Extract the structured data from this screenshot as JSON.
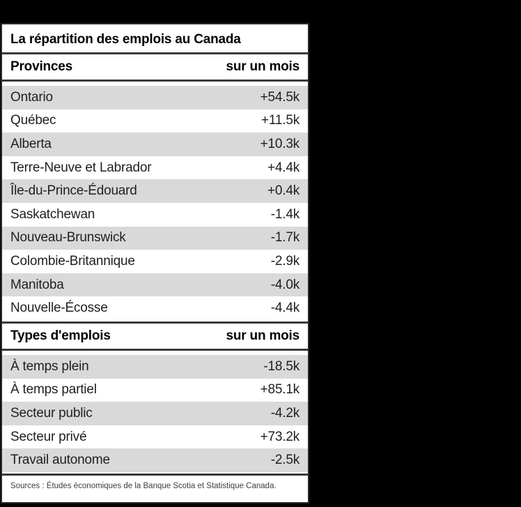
{
  "page": {
    "background_color": "#000000"
  },
  "card": {
    "background_color": "#ffffff",
    "border_color": "#2b2b2b",
    "stripe_color": "#d9d9d9",
    "rule_color": "#3a3a3a",
    "title": "La répartition des emplois au Canada",
    "sources": "Sources : Études économiques de la Banque Scotia et Statistique Canada."
  },
  "sections": [
    {
      "header": {
        "label": "Provinces",
        "value_label": "sur un mois"
      },
      "rows": [
        {
          "label": "Ontario",
          "value": "+54.5k"
        },
        {
          "label": "Québec",
          "value": "+11.5k"
        },
        {
          "label": "Alberta",
          "value": "+10.3k"
        },
        {
          "label": "Terre-Neuve et Labrador",
          "value": "+4.4k"
        },
        {
          "label": "Île-du-Prince-Édouard",
          "value": "+0.4k"
        },
        {
          "label": "Saskatchewan",
          "value": "-1.4k"
        },
        {
          "label": "Nouveau-Brunswick",
          "value": "-1.7k"
        },
        {
          "label": "Colombie-Britannique",
          "value": "-2.9k"
        },
        {
          "label": "Manitoba",
          "value": "-4.0k"
        },
        {
          "label": "Nouvelle-Écosse",
          "value": "-4.4k"
        }
      ]
    },
    {
      "header": {
        "label": "Types d'emplois",
        "value_label": "sur un mois"
      },
      "rows": [
        {
          "label": "À temps plein",
          "value": "-18.5k"
        },
        {
          "label": "À temps partiel",
          "value": "+85.1k"
        },
        {
          "label": "Secteur public",
          "value": "-4.2k"
        },
        {
          "label": "Secteur privé",
          "value": "+73.2k"
        },
        {
          "label": "Travail autonome",
          "value": "-2.5k"
        }
      ]
    }
  ],
  "chart_data": {
    "type": "table",
    "title": "La répartition des emplois au Canada",
    "tables": [
      {
        "columns": [
          "Provinces",
          "sur un mois"
        ],
        "rows": [
          [
            "Ontario",
            "+54.5k"
          ],
          [
            "Québec",
            "+11.5k"
          ],
          [
            "Alberta",
            "+10.3k"
          ],
          [
            "Terre-Neuve et Labrador",
            "+4.4k"
          ],
          [
            "Île-du-Prince-Édouard",
            "+0.4k"
          ],
          [
            "Saskatchewan",
            "-1.4k"
          ],
          [
            "Nouveau-Brunswick",
            "-1.7k"
          ],
          [
            "Colombie-Britannique",
            "-2.9k"
          ],
          [
            "Manitoba",
            "-4.0k"
          ],
          [
            "Nouvelle-Écosse",
            "-4.4k"
          ]
        ],
        "values_thousands": [
          54.5,
          11.5,
          10.3,
          4.4,
          0.4,
          -1.4,
          -1.7,
          -2.9,
          -4.0,
          -4.4
        ]
      },
      {
        "columns": [
          "Types d'emplois",
          "sur un mois"
        ],
        "rows": [
          [
            "À temps plein",
            "-18.5k"
          ],
          [
            "À temps partiel",
            "+85.1k"
          ],
          [
            "Secteur public",
            "-4.2k"
          ],
          [
            "Secteur privé",
            "+73.2k"
          ],
          [
            "Travail autonome",
            "-2.5k"
          ]
        ],
        "values_thousands": [
          -18.5,
          85.1,
          -4.2,
          73.2,
          -2.5
        ]
      }
    ],
    "source_note": "Sources : Études économiques de la Banque Scotia et Statistique Canada."
  }
}
